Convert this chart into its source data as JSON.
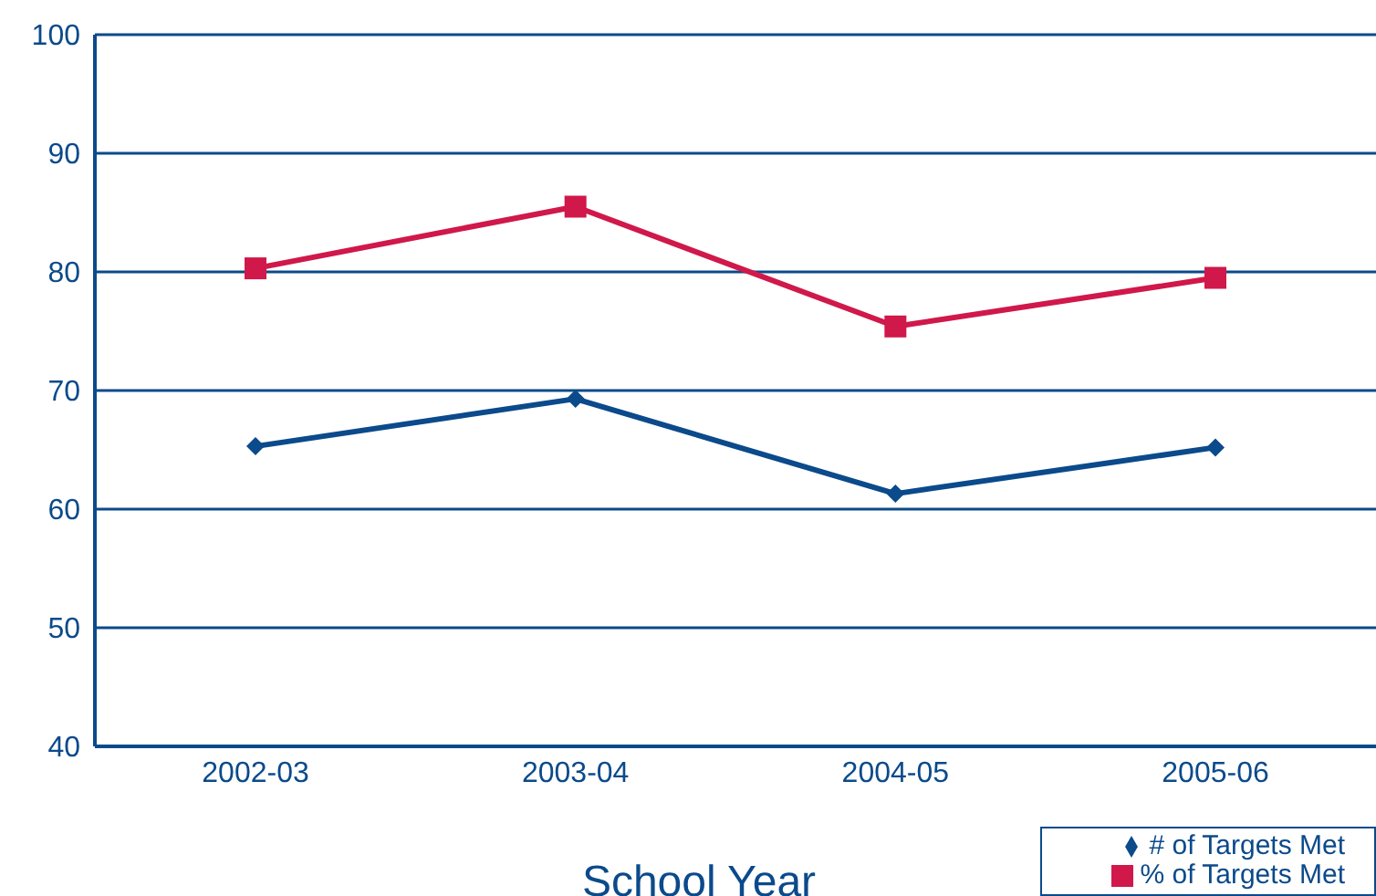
{
  "chart_data": {
    "type": "line",
    "xlabel": "School Year",
    "categories": [
      "2002-03",
      "2003-04",
      "2004-05",
      "2005-06"
    ],
    "series": [
      {
        "name": "# of Targets Met",
        "color": "#0b4a8b",
        "values": [
          65.3,
          69.3,
          61.3,
          65.2
        ],
        "marker": "diamond"
      },
      {
        "name": "% of Targets Met",
        "color": "#d0184a",
        "values": [
          80.3,
          85.5,
          75.4,
          79.5
        ],
        "marker": "square"
      }
    ],
    "ylim": [
      40,
      100
    ],
    "yticks": [
      40,
      50,
      60,
      70,
      80,
      90,
      100
    ],
    "grid": "y",
    "legend": "bottom right"
  }
}
